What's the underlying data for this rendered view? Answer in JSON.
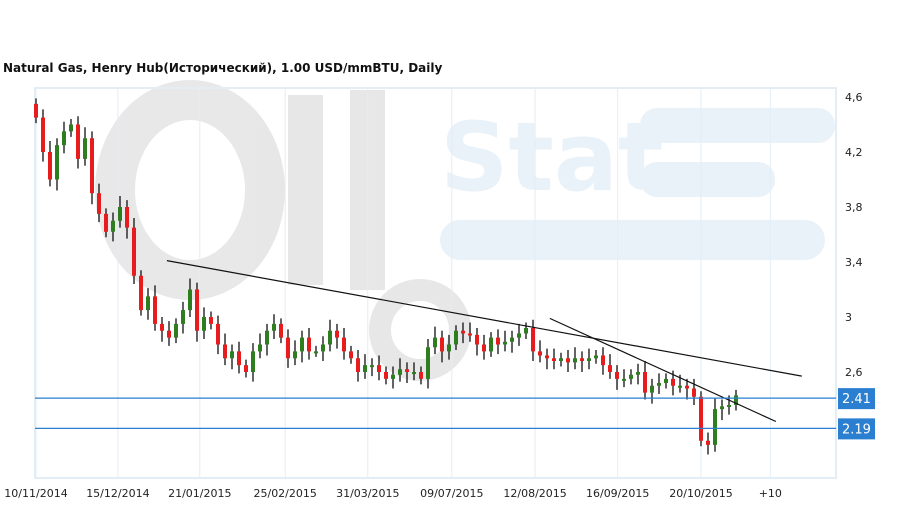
{
  "chart_data": {
    "type": "candlestick",
    "title": "Natural Gas, Henry Hub(Исторический), 1.00 USD/mmBTU, Daily",
    "watermark": "OilStat",
    "ylim": [
      1.95,
      4.66
    ],
    "yticks": [
      "4,6",
      "4,2",
      "3,8",
      "3,4",
      "3",
      "2,6"
    ],
    "ytick_values": [
      4.6,
      4.2,
      3.8,
      3.4,
      3.0,
      2.6
    ],
    "xticks": [
      {
        "label": "10/11/2014",
        "index": 0
      },
      {
        "label": "15/12/2014",
        "index": 11.7
      },
      {
        "label": "21/01/2015",
        "index": 23.4
      },
      {
        "label": "25/02/2015",
        "index": 35.6
      },
      {
        "label": "31/03/2015",
        "index": 47.4
      },
      {
        "label": "09/07/2015",
        "index": 59.4
      },
      {
        "label": "12/08/2015",
        "index": 71.3
      },
      {
        "label": "16/09/2015",
        "index": 83.1
      },
      {
        "label": "20/10/2015",
        "index": 95
      },
      {
        "label": "+10",
        "index": 104.9
      }
    ],
    "first_open": 4.55,
    "close": [
      4.45,
      4.2,
      4.0,
      4.25,
      4.35,
      4.4,
      4.15,
      4.3,
      3.9,
      3.75,
      3.62,
      3.7,
      3.8,
      3.65,
      3.3,
      3.05,
      3.15,
      2.95,
      2.9,
      2.85,
      2.95,
      3.05,
      3.2,
      2.9,
      3.0,
      2.95,
      2.8,
      2.7,
      2.75,
      2.65,
      2.6,
      2.75,
      2.8,
      2.9,
      2.95,
      2.85,
      2.7,
      2.75,
      2.85,
      2.75,
      2.75,
      2.8,
      2.9,
      2.85,
      2.75,
      2.7,
      2.6,
      2.65,
      2.65,
      2.6,
      2.55,
      2.58,
      2.62,
      2.6,
      2.6,
      2.55,
      2.78,
      2.85,
      2.75,
      2.8,
      2.9,
      2.88,
      2.87,
      2.8,
      2.75,
      2.85,
      2.8,
      2.82,
      2.85,
      2.88,
      2.92,
      2.75,
      2.72,
      2.7,
      2.68,
      2.7,
      2.67,
      2.7,
      2.68,
      2.7,
      2.72,
      2.65,
      2.6,
      2.55,
      2.55,
      2.58,
      2.6,
      2.45,
      2.5,
      2.52,
      2.55,
      2.5,
      2.5,
      2.48,
      2.42,
      2.1,
      2.07,
      2.33,
      2.35,
      2.36,
      2.43
    ],
    "trendlines": [
      {
        "from": {
          "index": 18.7,
          "value": 3.41
        },
        "to": {
          "index": 109.4,
          "value": 2.57
        }
      },
      {
        "from": {
          "index": 73.4,
          "value": 2.99
        },
        "to": {
          "index": 105.7,
          "value": 2.24
        }
      }
    ],
    "levels": [
      {
        "label": "2.41",
        "value": 2.41
      },
      {
        "label": "2.19",
        "value": 2.19
      }
    ],
    "colors": {
      "up": "#2e7d1e",
      "down": "#e81c1c",
      "level": "#2a7fd0",
      "grid": "#e3edf6",
      "trend": "#111111"
    }
  }
}
